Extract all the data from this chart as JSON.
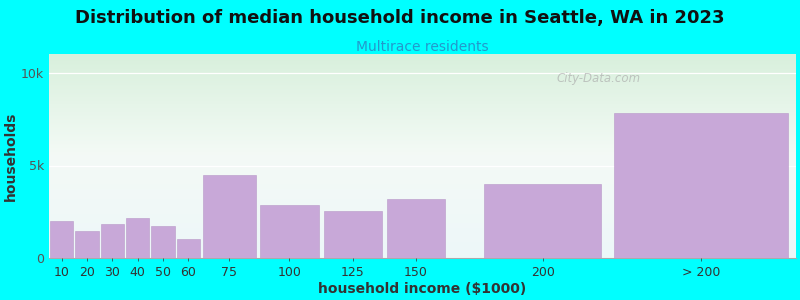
{
  "title": "Distribution of median household income in Seattle, WA in 2023",
  "subtitle": "Multirace residents",
  "xlabel": "household income ($1000)",
  "ylabel": "households",
  "background_color": "#00FFFF",
  "bar_color": "#c8a8d8",
  "bar_edge_color": "#b898c8",
  "categories": [
    "10",
    "20",
    "30",
    "40",
    "50",
    "60",
    "75",
    "100",
    "125",
    "150",
    "200",
    "> 200"
  ],
  "values": [
    2000,
    1500,
    1850,
    2200,
    1750,
    1050,
    4500,
    2900,
    2550,
    3200,
    4000,
    7800
  ],
  "bar_lefts": [
    5,
    15,
    25,
    35,
    45,
    55,
    65,
    87.5,
    112.5,
    137.5,
    175,
    225
  ],
  "bar_widths": [
    10,
    10,
    10,
    10,
    10,
    10,
    22.5,
    25,
    25,
    25,
    50,
    75
  ],
  "xlim": [
    5,
    300
  ],
  "ylim": [
    0,
    11000
  ],
  "yticks": [
    0,
    5000,
    10000
  ],
  "ytick_labels": [
    "0",
    "5k",
    "10k"
  ],
  "watermark": "City-Data.com",
  "title_fontsize": 13,
  "subtitle_fontsize": 10,
  "axis_label_fontsize": 10,
  "tick_fontsize": 9
}
